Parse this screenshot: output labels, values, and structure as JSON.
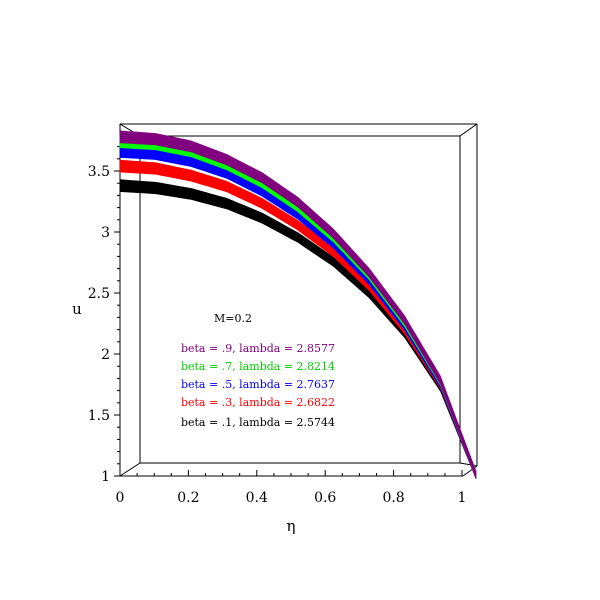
{
  "chart_data": {
    "type": "line",
    "title": "",
    "xlabel": "η",
    "ylabel": "u",
    "xlim": [
      0,
      1
    ],
    "ylim": [
      1,
      3.8
    ],
    "x_ticks": [
      "0",
      "0.2",
      "0.4",
      "0.6",
      "0.8",
      "1"
    ],
    "y_ticks": [
      "1",
      "1.5",
      "2",
      "2.5",
      "3",
      "3.5"
    ],
    "grid": false,
    "annotation": "M=0.2",
    "series": [
      {
        "name": "beta = .9, lambda = 2.8577",
        "color": "#800080",
        "x": [
          0,
          0.1,
          0.2,
          0.3,
          0.4,
          0.5,
          0.6,
          0.7,
          0.8,
          0.9,
          1.0
        ],
        "y": [
          3.78,
          3.76,
          3.7,
          3.59,
          3.44,
          3.24,
          2.98,
          2.66,
          2.27,
          1.78,
          1.0
        ]
      },
      {
        "name": "beta = .7, lambda = 2.8214",
        "color": "#00ff00",
        "x": [
          0,
          0.1,
          0.2,
          0.3,
          0.4,
          0.5,
          0.6,
          0.7,
          0.8,
          0.9,
          1.0
        ],
        "y": [
          3.74,
          3.72,
          3.66,
          3.55,
          3.4,
          3.2,
          2.95,
          2.64,
          2.25,
          1.77,
          1.0
        ]
      },
      {
        "name": "beta = .5, lambda = 2.7637",
        "color": "#0000ff",
        "x": [
          0,
          0.1,
          0.2,
          0.3,
          0.4,
          0.5,
          0.6,
          0.7,
          0.8,
          0.9,
          1.0
        ],
        "y": [
          3.66,
          3.64,
          3.58,
          3.48,
          3.33,
          3.14,
          2.9,
          2.6,
          2.22,
          1.75,
          1.0
        ]
      },
      {
        "name": "beta = .3, lambda = 2.6822",
        "color": "#ff0000",
        "x": [
          0,
          0.1,
          0.2,
          0.3,
          0.4,
          0.5,
          0.6,
          0.7,
          0.8,
          0.9,
          1.0
        ],
        "y": [
          3.54,
          3.52,
          3.46,
          3.37,
          3.23,
          3.05,
          2.83,
          2.55,
          2.19,
          1.74,
          1.0
        ]
      },
      {
        "name": "beta = .1, lambda = 2.5744",
        "color": "#000000",
        "x": [
          0,
          0.1,
          0.2,
          0.3,
          0.4,
          0.5,
          0.6,
          0.7,
          0.8,
          0.9,
          1.0
        ],
        "y": [
          3.38,
          3.36,
          3.31,
          3.23,
          3.11,
          2.95,
          2.75,
          2.49,
          2.16,
          1.72,
          1.0
        ]
      }
    ]
  }
}
